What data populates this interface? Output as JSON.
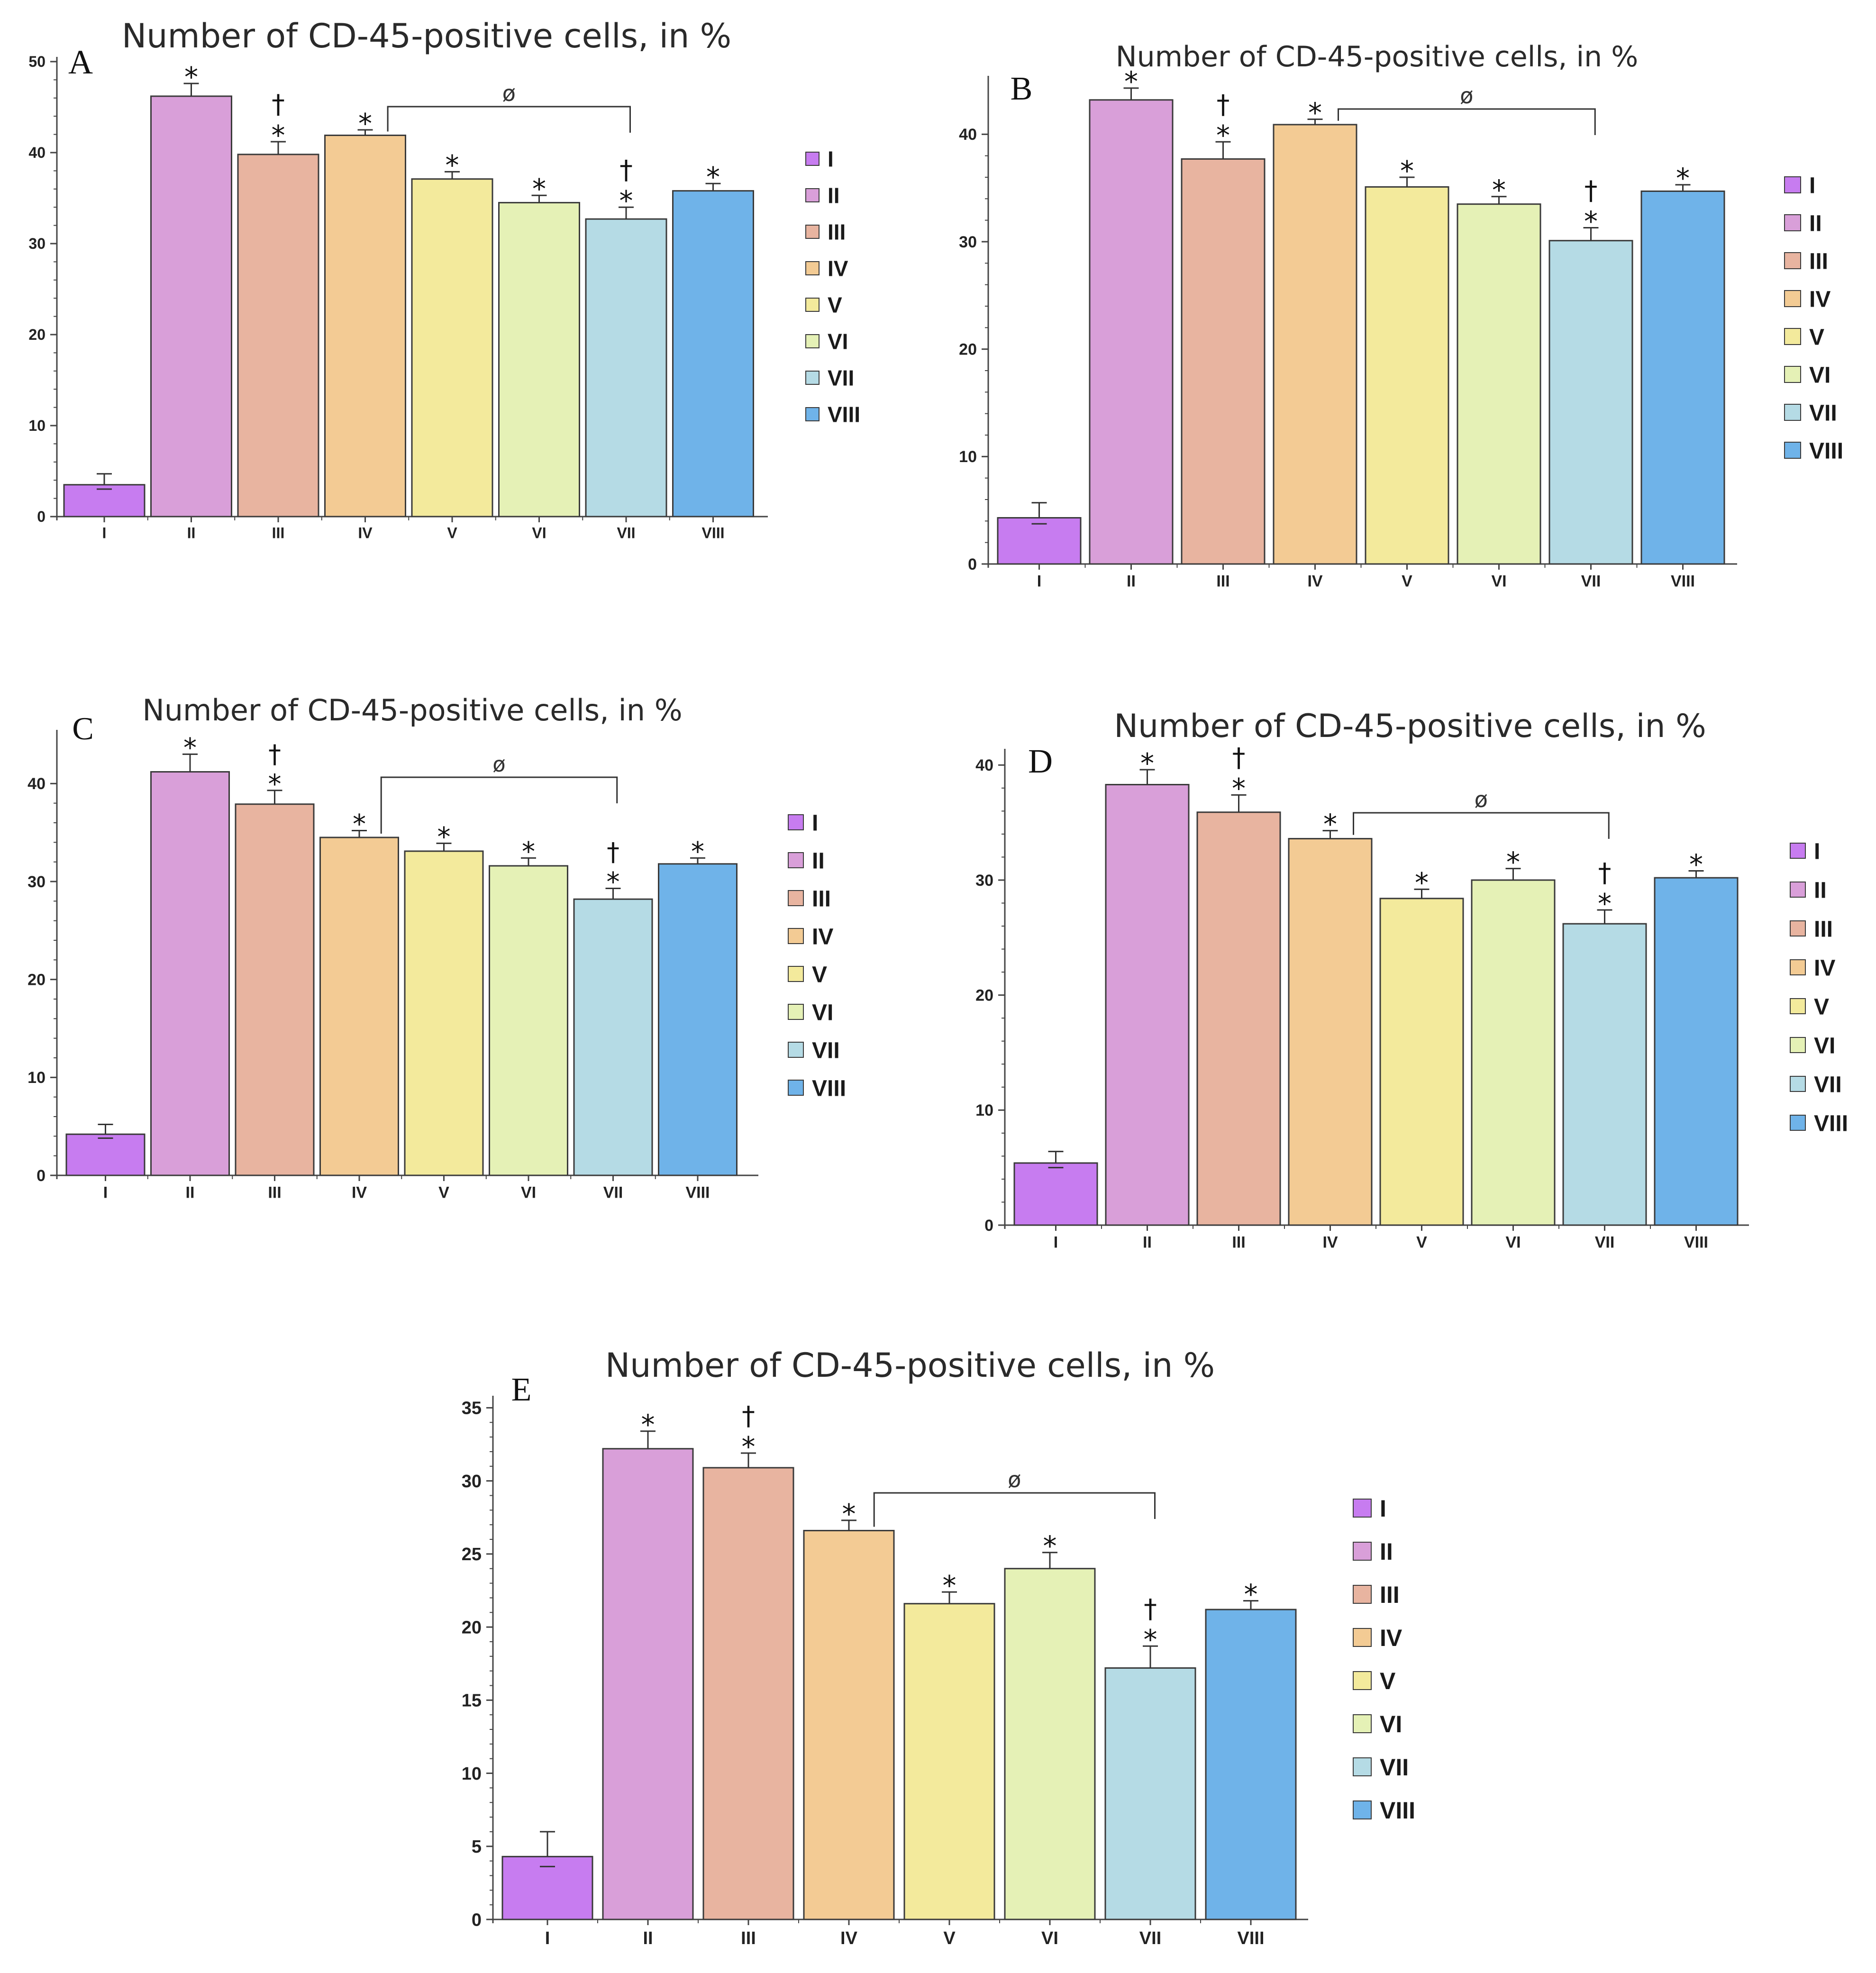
{
  "colors": {
    "I": "#c77cf0",
    "II": "#d99fd9",
    "III": "#e8b4a0",
    "IV": "#f3cb94",
    "V": "#f3ea9c",
    "VI": "#e5f1b6",
    "VII": "#b5dbe5",
    "VIII": "#6fb3e9",
    "bar_edge": "#3a3a3a",
    "axis": "#444444"
  },
  "legend": [
    "I",
    "II",
    "III",
    "IV",
    "V",
    "VI",
    "VII",
    "VIII"
  ],
  "chart_data": [
    {
      "panel": "A",
      "type": "bar",
      "title": "Number of CD-45-positive cells, in %",
      "categories": [
        "I",
        "II",
        "III",
        "IV",
        "V",
        "VI",
        "VII",
        "VIII"
      ],
      "values": [
        3.5,
        46.2,
        39.8,
        41.9,
        37.1,
        34.5,
        32.7,
        35.8
      ],
      "errors": [
        1.2,
        1.4,
        1.4,
        0.6,
        0.8,
        0.8,
        1.3,
        0.8
      ],
      "markers": [
        "",
        "*",
        "†*",
        "*",
        "*",
        "*",
        "†*",
        "*"
      ],
      "bracket": {
        "from": "IV",
        "to": "VII",
        "label": "ø"
      },
      "yticks": [
        0,
        10,
        20,
        30,
        40,
        50
      ],
      "ylim": [
        0,
        50
      ]
    },
    {
      "panel": "B",
      "type": "bar",
      "title": "Number of CD-45-positive cells, in %",
      "categories": [
        "I",
        "II",
        "III",
        "IV",
        "V",
        "VI",
        "VII",
        "VIII"
      ],
      "values": [
        4.3,
        43.2,
        37.7,
        40.9,
        35.1,
        33.5,
        30.1,
        34.7
      ],
      "errors": [
        1.4,
        1.1,
        1.6,
        0.5,
        0.9,
        0.7,
        1.2,
        0.6
      ],
      "markers": [
        "",
        "*",
        "†*",
        "*",
        "*",
        "*",
        "†*",
        "*"
      ],
      "bracket": {
        "from": "IV",
        "to": "VII",
        "label": "ø"
      },
      "yticks": [
        0,
        10,
        20,
        30,
        40
      ],
      "ylim": [
        0,
        45
      ]
    },
    {
      "panel": "C",
      "type": "bar",
      "title": "Number of CD-45-positive cells, in %",
      "categories": [
        "I",
        "II",
        "III",
        "IV",
        "V",
        "VI",
        "VII",
        "VIII"
      ],
      "values": [
        4.2,
        41.2,
        37.9,
        34.5,
        33.1,
        31.6,
        28.2,
        31.8
      ],
      "errors": [
        1.0,
        1.8,
        1.4,
        0.7,
        0.8,
        0.8,
        1.1,
        0.6
      ],
      "markers": [
        "",
        "*",
        "†*",
        "*",
        "*",
        "*",
        "†*",
        "*"
      ],
      "bracket": {
        "from": "IV",
        "to": "VII",
        "label": "ø"
      },
      "yticks": [
        0,
        10,
        20,
        30,
        40
      ],
      "ylim": [
        0,
        45
      ]
    },
    {
      "panel": "D",
      "type": "bar",
      "title": "Number of CD-45-positive cells, in %",
      "categories": [
        "I",
        "II",
        "III",
        "IV",
        "V",
        "VI",
        "VII",
        "VIII"
      ],
      "values": [
        5.4,
        38.3,
        35.9,
        33.6,
        28.4,
        30.0,
        26.2,
        30.2
      ],
      "errors": [
        1.0,
        1.3,
        1.5,
        0.7,
        0.8,
        1.0,
        1.2,
        0.6
      ],
      "markers": [
        "",
        "*",
        "†*",
        "*",
        "*",
        "*",
        "†*",
        "*"
      ],
      "bracket": {
        "from": "IV",
        "to": "VII",
        "label": "ø"
      },
      "yticks": [
        0,
        10,
        20,
        30,
        40
      ],
      "ylim": [
        0,
        41
      ]
    },
    {
      "panel": "E",
      "type": "bar",
      "title": "Number of CD-45-positive cells, in %",
      "categories": [
        "I",
        "II",
        "III",
        "IV",
        "V",
        "VI",
        "VII",
        "VIII"
      ],
      "values": [
        4.3,
        32.2,
        30.9,
        26.6,
        21.6,
        24.0,
        17.2,
        21.2
      ],
      "errors": [
        1.7,
        1.2,
        1.0,
        0.7,
        0.8,
        1.1,
        1.5,
        0.6
      ],
      "markers": [
        "",
        "*",
        "†*",
        "*",
        "*",
        "*",
        "†*",
        "*"
      ],
      "bracket": {
        "from": "IV",
        "to": "VII",
        "label": "ø"
      },
      "yticks": [
        0,
        5,
        10,
        15,
        20,
        25,
        30,
        35
      ],
      "ylim": [
        0,
        35.5
      ]
    }
  ]
}
